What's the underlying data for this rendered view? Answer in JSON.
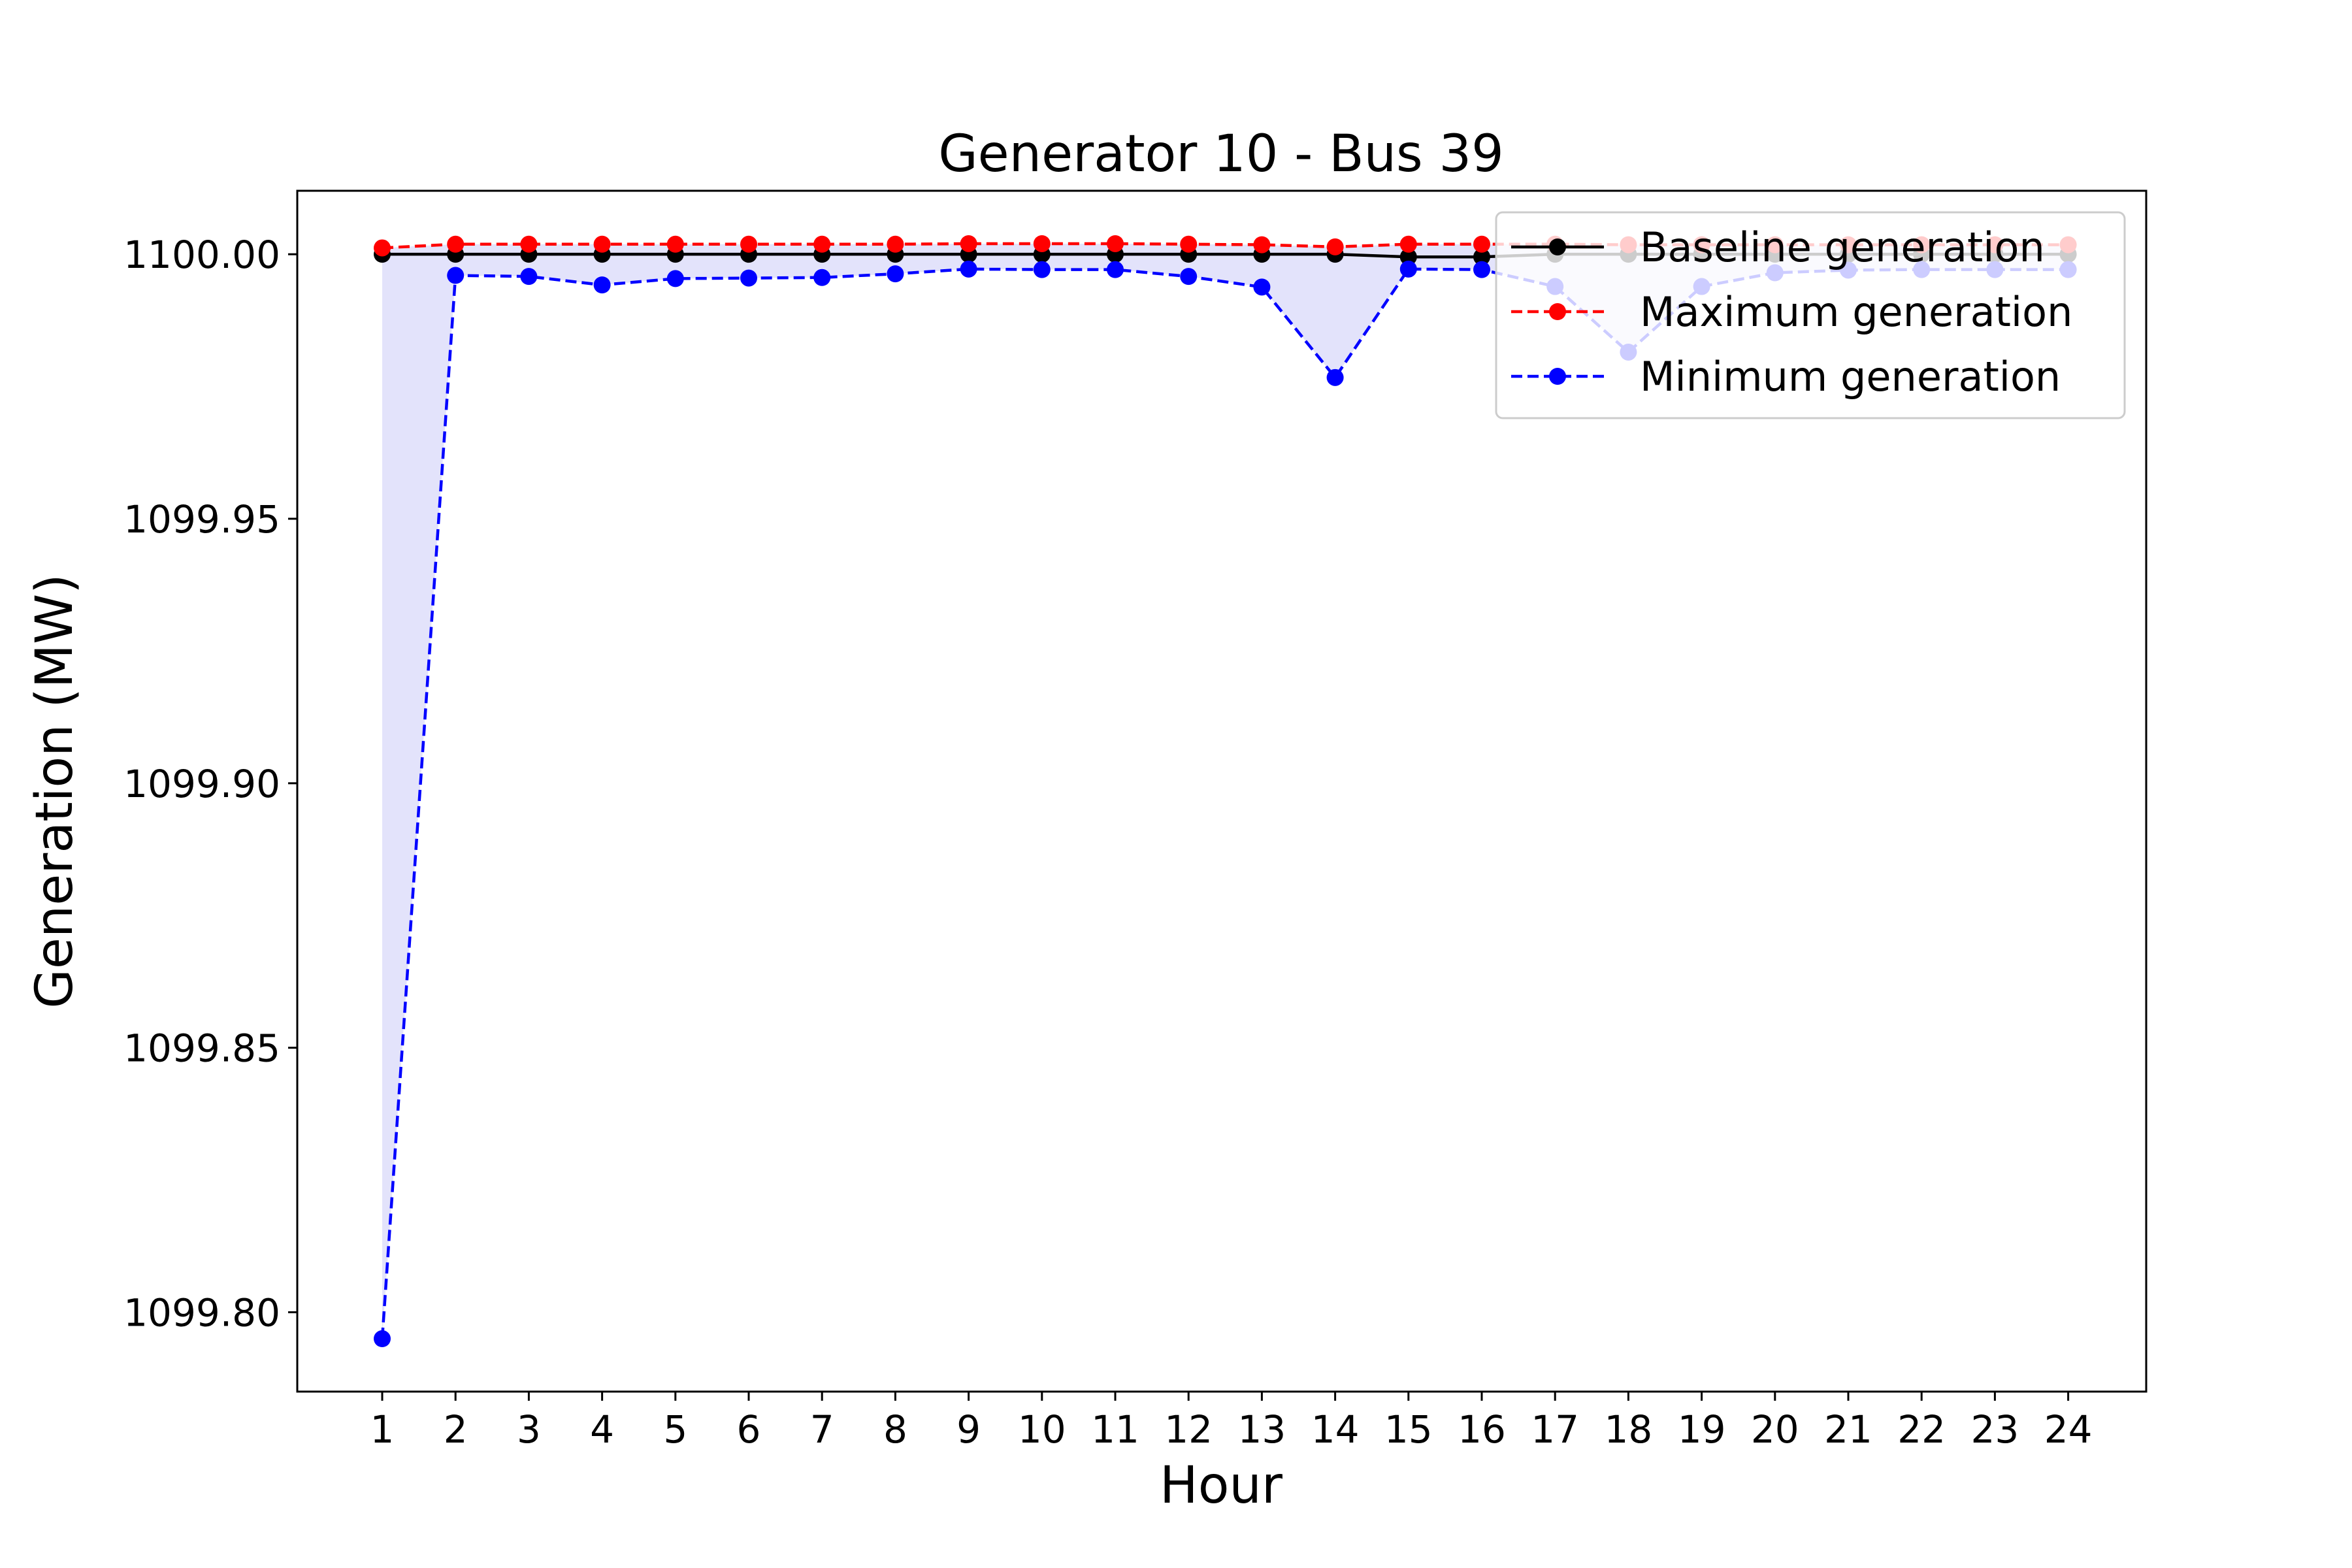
{
  "chart_data": {
    "type": "line",
    "title": "Generator 10 - Bus 39",
    "xlabel": "Hour",
    "ylabel": "Generation (MW)",
    "x": [
      1,
      2,
      3,
      4,
      5,
      6,
      7,
      8,
      9,
      10,
      11,
      12,
      13,
      14,
      15,
      16,
      17,
      18,
      19,
      20,
      21,
      22,
      23,
      24
    ],
    "xticks": [
      "1",
      "2",
      "3",
      "4",
      "5",
      "6",
      "7",
      "8",
      "9",
      "10",
      "11",
      "12",
      "13",
      "14",
      "15",
      "16",
      "17",
      "18",
      "19",
      "20",
      "21",
      "22",
      "23",
      "24"
    ],
    "ylim": [
      1099.785,
      1100.012
    ],
    "yticks": [
      1099.8,
      1099.85,
      1099.9,
      1099.95,
      1100.0
    ],
    "ytick_labels": [
      "1099.80",
      "1099.85",
      "1099.90",
      "1099.95",
      "1100.00"
    ],
    "grid": false,
    "legend_position": "top-right",
    "shaded_band": {
      "between": [
        "Minimum generation",
        "Maximum generation"
      ],
      "color": "#e3e3fb"
    },
    "series": [
      {
        "name": "Baseline generation",
        "color": "#000000",
        "style": "solid",
        "values": [
          1100.0,
          1100.0,
          1100.0,
          1100.0,
          1100.0,
          1100.0,
          1100.0,
          1100.0,
          1100.0,
          1100.0,
          1100.0,
          1100.0,
          1100.0,
          1100.0,
          1099.9995,
          1099.9995,
          1100.0,
          1100.0,
          1100.0,
          1100.0,
          1100.0,
          1100.0,
          1100.0,
          1100.0
        ]
      },
      {
        "name": "Maximum generation",
        "color": "#ff0000",
        "style": "dashed",
        "values": [
          1100.0012,
          1100.0019,
          1100.0019,
          1100.0019,
          1100.0019,
          1100.0019,
          1100.0019,
          1100.0019,
          1100.002,
          1100.002,
          1100.002,
          1100.0019,
          1100.0018,
          1100.0014,
          1100.0019,
          1100.0019,
          1100.0019,
          1100.0018,
          1100.0018,
          1100.0018,
          1100.0018,
          1100.0018,
          1100.0018,
          1100.0018
        ]
      },
      {
        "name": "Minimum generation",
        "color": "#0000ff",
        "style": "dashed",
        "values": [
          1099.795,
          1099.996,
          1099.9958,
          1099.9942,
          1099.9954,
          1099.9955,
          1099.9956,
          1099.9963,
          1099.9972,
          1099.9971,
          1099.9971,
          1099.9958,
          1099.9938,
          1099.9767,
          1099.9972,
          1099.9971,
          1099.9939,
          1099.9815,
          1099.9939,
          1099.9965,
          1099.997,
          1099.9971,
          1099.9971,
          1099.9971
        ]
      }
    ]
  }
}
